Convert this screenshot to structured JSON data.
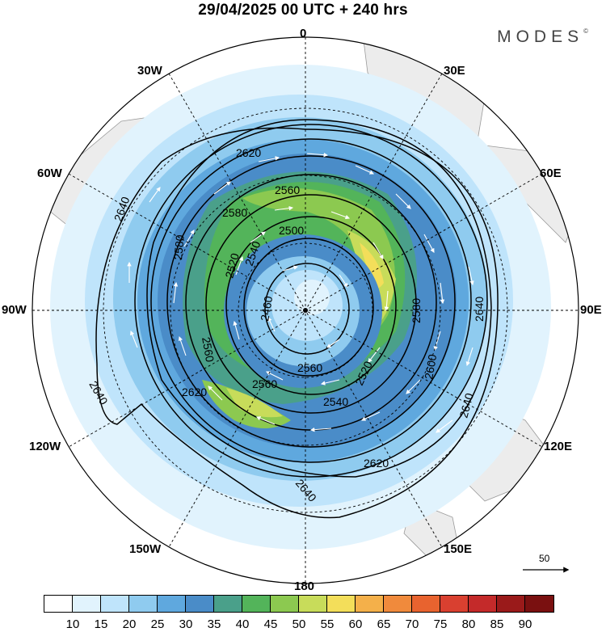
{
  "title": "29/04/2025  00 UTC  + 240 hrs",
  "brand": {
    "name": "MODES",
    "mark": "©"
  },
  "map": {
    "projection": "south polar stereographic",
    "longitude_labels": {
      "top": "0",
      "top_right": "30E",
      "upper_right": "60E",
      "right": "90E",
      "lower_right": "120E",
      "bottom_right": "150E",
      "bottom": "180",
      "bottom_left": "150W",
      "lower_left": "120W",
      "left": "90W",
      "upper_left": "60W",
      "top_left": "30W"
    },
    "contour_labels": [
      "2460",
      "2500",
      "2520",
      "2520",
      "2540",
      "2540",
      "2560",
      "2560",
      "2560",
      "2560",
      "2580",
      "2580",
      "2580",
      "2600",
      "2620",
      "2620",
      "2620",
      "2640",
      "2640",
      "2640",
      "2640",
      "2640"
    ],
    "wind_reference": {
      "value": "50"
    }
  },
  "colorbar": {
    "ticks": [
      "10",
      "15",
      "20",
      "25",
      "30",
      "35",
      "40",
      "45",
      "50",
      "55",
      "60",
      "65",
      "70",
      "75",
      "80",
      "85",
      "90"
    ],
    "colors": [
      "#ffffff",
      "#e1f3fd",
      "#bfe4fb",
      "#8fcbef",
      "#5fa8de",
      "#4a8cc8",
      "#4aa08a",
      "#53b45a",
      "#8cc950",
      "#c8dc5a",
      "#f3de5a",
      "#f4b04a",
      "#f08a3c",
      "#e8632f",
      "#d94030",
      "#c42a2a",
      "#9a1a1a",
      "#7a1010"
    ]
  }
}
